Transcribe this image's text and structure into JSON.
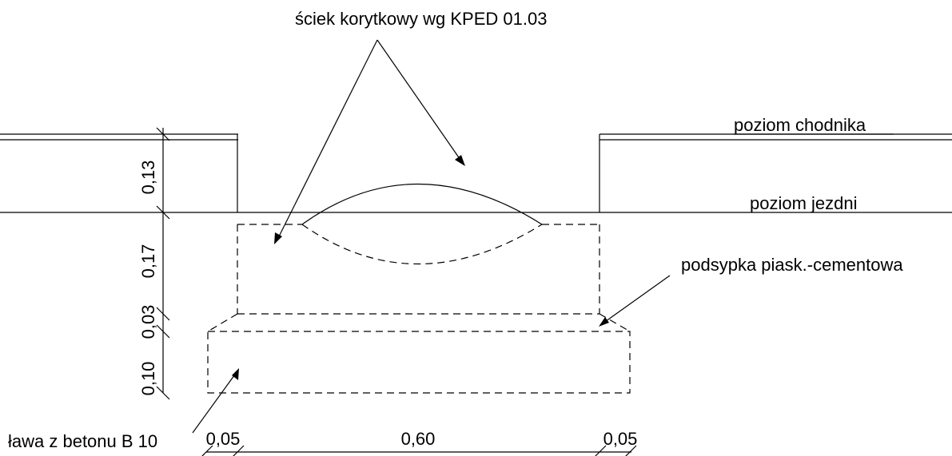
{
  "labels": {
    "channel": "ściek korytkowy wg KPED 01.03",
    "sidewalk_level": "poziom chodnika",
    "road_level": "poziom jezdni",
    "bedding": "podsypka piask.-cementowa",
    "footing": "ława z betonu B 10"
  },
  "dimensions": {
    "vertical": [
      "0,13",
      "0,17",
      "0,03",
      "0,10"
    ],
    "horizontal": [
      "0,05",
      "0,60",
      "0,05"
    ]
  }
}
